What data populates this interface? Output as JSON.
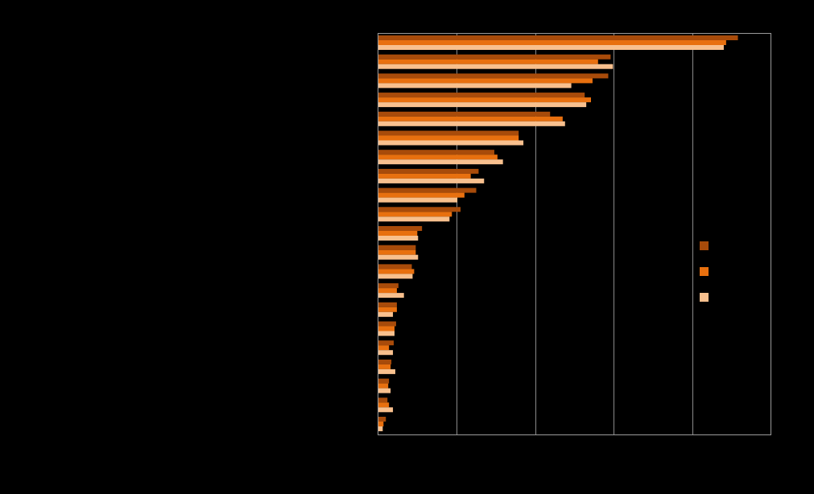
{
  "chart_data": {
    "type": "bar",
    "orientation": "horizontal",
    "title": "",
    "xlabel": "",
    "ylabel": "",
    "xlim": [
      0,
      50
    ],
    "grid": true,
    "legend_position": "right",
    "categories": [
      "",
      "",
      "",
      "",
      "",
      "",
      "",
      "",
      "",
      "",
      "",
      "",
      "",
      "",
      "",
      "",
      "",
      "",
      "",
      "",
      ""
    ],
    "series": [
      {
        "color": "#a84b0a",
        "values": [
          45.8,
          29.6,
          29.3,
          26.3,
          21.9,
          17.9,
          14.8,
          12.8,
          12.5,
          10.5,
          5.6,
          4.8,
          4.3,
          2.6,
          2.4,
          2.3,
          2.0,
          1.7,
          1.4,
          1.2,
          1.0
        ]
      },
      {
        "color": "#e8700f",
        "values": [
          44.3,
          28.0,
          27.3,
          27.1,
          23.5,
          17.9,
          15.2,
          11.8,
          11.0,
          9.4,
          5.0,
          4.8,
          4.6,
          2.4,
          2.4,
          2.1,
          1.4,
          1.6,
          1.3,
          1.4,
          0.7
        ]
      },
      {
        "color": "#f8c08e",
        "values": [
          44.0,
          29.9,
          24.6,
          26.5,
          23.8,
          18.5,
          15.9,
          13.5,
          10.1,
          9.1,
          5.1,
          5.1,
          4.4,
          3.3,
          1.9,
          2.1,
          1.9,
          2.2,
          1.6,
          1.9,
          0.6
        ]
      }
    ]
  }
}
